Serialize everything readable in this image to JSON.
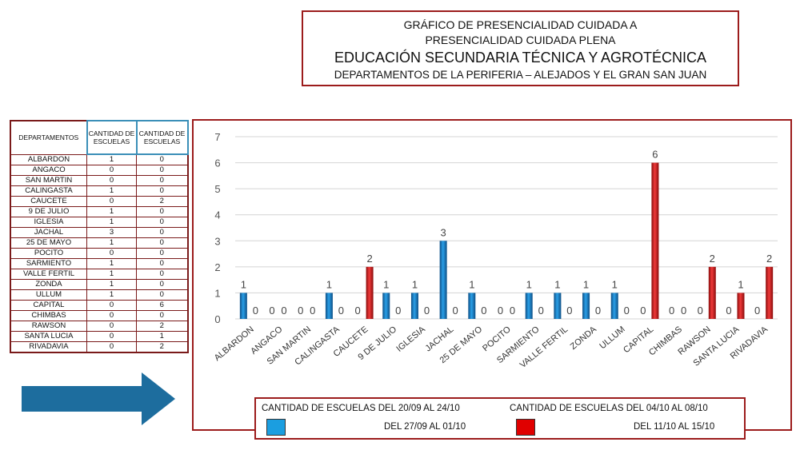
{
  "title": {
    "line1": "GRÁFICO DE PRESENCIALIDAD CUIDADA A",
    "line2": "PRESENCIALIDAD CUIDADA PLENA",
    "line3": "EDUCACIÓN SECUNDARIA TÉCNICA Y AGROTÉCNICA",
    "line4": "DEPARTAMENTOS DE LA PERIFERIA – ALEJADOS Y EL GRAN SAN JUAN"
  },
  "table": {
    "headers": [
      "DEPARTAMENTOS",
      "CANTIDAD DE ESCUELAS",
      "CANTIDAD DE ESCUELAS"
    ],
    "rows": [
      [
        "ALBARDON",
        "1",
        "0"
      ],
      [
        "ANGACO",
        "0",
        "0"
      ],
      [
        "SAN MARTIN",
        "0",
        "0"
      ],
      [
        "CALINGASTA",
        "1",
        "0"
      ],
      [
        "CAUCETE",
        "0",
        "2"
      ],
      [
        "9 DE JULIO",
        "1",
        "0"
      ],
      [
        "IGLESIA",
        "1",
        "0"
      ],
      [
        "JACHAL",
        "3",
        "0"
      ],
      [
        "25 DE MAYO",
        "1",
        "0"
      ],
      [
        "POCITO",
        "0",
        "0"
      ],
      [
        "SARMIENTO",
        "1",
        "0"
      ],
      [
        "VALLE FERTIL",
        "1",
        "0"
      ],
      [
        "ZONDA",
        "1",
        "0"
      ],
      [
        "ULLUM",
        "1",
        "0"
      ],
      [
        "CAPITAL",
        "0",
        "6"
      ],
      [
        "CHIMBAS",
        "0",
        "0"
      ],
      [
        "RAWSON",
        "0",
        "2"
      ],
      [
        "SANTA LUCIA",
        "0",
        "1"
      ],
      [
        "RIVADAVIA",
        "0",
        "2"
      ]
    ]
  },
  "legend": {
    "header1": "CANTIDAD DE ESCUELAS DEL 20/09 AL 24/10",
    "header2": "CANTIDAD DE ESCUELAS DEL 04/10 AL 08/10",
    "sub1": "DEL 27/09  AL 01/10",
    "sub2": "DEL  11/10 AL  15/10"
  },
  "chart_data": {
    "type": "bar",
    "categories": [
      "ALBARDON",
      "ANGACO",
      "SAN MARTIN",
      "CALINGASTA",
      "CAUCETE",
      "9 DE JULIO",
      "IGLESIA",
      "JACHAL",
      "25 DE MAYO",
      "POCITO",
      "SARMIENTO",
      "VALLE FERTIL",
      "ZONDA",
      "ULLUM",
      "CAPITAL",
      "CHIMBAS",
      "RAWSON",
      "SANTA LUCIA",
      "RIVADAVIA"
    ],
    "series": [
      {
        "color": "#1b7fc4",
        "values": [
          1,
          0,
          0,
          1,
          0,
          1,
          1,
          3,
          1,
          0,
          1,
          1,
          1,
          1,
          0,
          0,
          0,
          0,
          0
        ]
      },
      {
        "color": "#d81f1f",
        "values": [
          0,
          0,
          0,
          0,
          2,
          0,
          0,
          0,
          0,
          0,
          0,
          0,
          0,
          0,
          6,
          0,
          2,
          1,
          2
        ]
      }
    ],
    "ylim": [
      0,
      7
    ],
    "yticks": [
      "0",
      "1",
      "2",
      "3",
      "4",
      "5",
      "6",
      "7"
    ],
    "grid": true,
    "legend_position": "bottom"
  }
}
